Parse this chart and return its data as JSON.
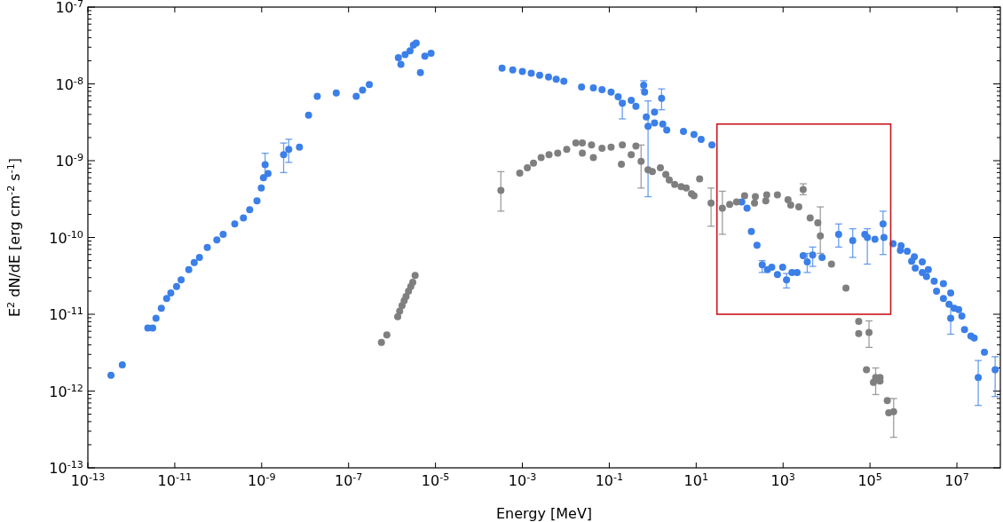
{
  "chart_data": {
    "type": "scatter",
    "xlabel": "Energy [MeV]",
    "ylabel": "E$^{2}$ dN/dE [erg cm$^{-2}$ s$^{-1}$]",
    "log": "xy",
    "grid": false,
    "marker": "circle",
    "xlim": [
      1e-13,
      100000000.0
    ],
    "ylim": [
      1e-13,
      1e-07
    ],
    "xticks": [
      {
        "value": 1e-13,
        "label": "10$^{-13}$"
      },
      {
        "value": 1e-11,
        "label": "10$^{-11}$"
      },
      {
        "value": 1e-09,
        "label": "10$^{-9}$"
      },
      {
        "value": 1e-07,
        "label": "10$^{-7}$"
      },
      {
        "value": 1e-05,
        "label": "10$^{-5}$"
      },
      {
        "value": 0.001,
        "label": "10$^{-3}$"
      },
      {
        "value": 0.1,
        "label": "10$^{-1}$"
      },
      {
        "value": 10,
        "label": "10$^{1}$"
      },
      {
        "value": 1000,
        "label": "10$^{3}$"
      },
      {
        "value": 100000,
        "label": "10$^{5}$"
      },
      {
        "value": 10000000,
        "label": "10$^{7}$"
      }
    ],
    "yticks": [
      {
        "value": 1e-13,
        "label": "10$^{-13}$"
      },
      {
        "value": 1e-12,
        "label": "10$^{-12}$"
      },
      {
        "value": 1e-11,
        "label": "10$^{-11}$"
      },
      {
        "value": 1e-10,
        "label": "10$^{-10}$"
      },
      {
        "value": 1e-09,
        "label": "10$^{-9}$"
      },
      {
        "value": 1e-08,
        "label": "10$^{-8}$"
      },
      {
        "value": 1e-07,
        "label": "10$^{-7}$"
      }
    ],
    "series": [
      {
        "color": "#3b7fe8",
        "x": [
          3.4e-13,
          6.2e-13,
          2.4e-12,
          3.1e-12,
          3.7e-12,
          4.9e-12,
          6.5e-12,
          8.1e-12,
          1.1e-11,
          1.4e-11,
          2.1e-11,
          2.8e-11,
          3.7e-11,
          5.6e-11,
          9.3e-11,
          1.3e-10,
          2.4e-10,
          3.8e-10,
          5.3e-10,
          7.8e-10,
          9.8e-10,
          1.1e-09,
          1.2e-09,
          1.4e-09,
          3.2e-09,
          4.2e-09,
          7.4e-09,
          1.2e-08,
          1.9e-08,
          5.2e-08,
          1.5e-07,
          2.1e-07,
          3e-07,
          1.4e-06,
          1.6e-06,
          2e-06,
          2.6e-06,
          3.1e-06,
          3.6e-06,
          4.5e-06,
          5.7e-06,
          7.9e-06,
          0.00034,
          0.0006,
          0.001,
          0.0016,
          0.0025,
          0.004,
          0.006,
          0.009,
          0.023,
          0.043,
          0.068,
          0.11,
          0.16,
          0.2,
          0.32,
          0.41,
          0.62,
          0.65,
          0.71,
          0.78,
          1.1,
          1.1,
          1.6,
          1.7,
          2.1,
          5.1,
          8.9,
          13,
          23,
          112,
          148,
          186,
          251,
          331,
          437,
          550,
          741,
          977,
          1200,
          1600,
          2100,
          2900,
          3600,
          4800,
          7900,
          19000,
          40000,
          76000,
          87000,
          130000,
          200000,
          210000,
          340000,
          500000,
          520000,
          720000,
          910000,
          1050000,
          1100000,
          1600000,
          1600000,
          2000000,
          2200000,
          3000000,
          3400000,
          4900000,
          4900000,
          6600000,
          7200000,
          7200000,
          8700000,
          11000000,
          13000000,
          15000000,
          21000000,
          25000000,
          31000000,
          43000000,
          76000000
        ],
        "values": [
          1.6e-12,
          2.2e-12,
          6.6e-12,
          6.6e-12,
          8.9e-12,
          1.2e-11,
          1.6e-11,
          1.9e-11,
          2.3e-11,
          2.8e-11,
          3.8e-11,
          4.7e-11,
          5.5e-11,
          7.4e-11,
          9.3e-11,
          1.1e-10,
          1.5e-10,
          1.8e-10,
          2.3e-10,
          3e-10,
          4.4e-10,
          6e-10,
          8.9e-10,
          6.8e-10,
          1.2e-09,
          1.4e-09,
          1.5e-09,
          3.9e-09,
          6.9e-09,
          7.6e-09,
          6.9e-09,
          8.3e-09,
          9.8e-09,
          2.2e-08,
          1.8e-08,
          2.4e-08,
          2.7e-08,
          3.2e-08,
          3.4e-08,
          1.4e-08,
          2.3e-08,
          2.5e-08,
          1.6e-08,
          1.52e-08,
          1.45e-08,
          1.38e-08,
          1.3e-08,
          1.23e-08,
          1.15e-08,
          1.08e-08,
          9.1e-09,
          8.9e-09,
          8.4e-09,
          7.8e-09,
          6.8e-09,
          5.6e-09,
          6.1e-09,
          5.1e-09,
          9.6e-09,
          7.8e-09,
          3.7e-09,
          2.8e-09,
          3.1e-09,
          4.3e-09,
          6.5e-09,
          3e-09,
          2.5e-09,
          2.4e-09,
          2.2e-09,
          1.9e-09,
          1.6e-09,
          2.9e-10,
          2.4e-10,
          1.2e-10,
          7.9e-11,
          4.4e-11,
          3.8e-11,
          4.1e-11,
          3.3e-11,
          4.1e-11,
          2.8e-11,
          3.5e-11,
          3.5e-11,
          5.8e-11,
          4.8e-11,
          5.9e-11,
          5.5e-11,
          1.1e-10,
          9.1e-11,
          1.1e-10,
          1e-10,
          9.5e-11,
          1.5e-10,
          1e-10,
          8.3e-11,
          6.8e-11,
          7.8e-11,
          6.6e-11,
          4.9e-11,
          5.6e-11,
          4e-11,
          4.8e-11,
          3.5e-11,
          3.1e-11,
          3.8e-11,
          2.7e-11,
          2e-11,
          2.5e-11,
          1.6e-11,
          1.35e-11,
          1.9e-11,
          8.9e-12,
          1.2e-11,
          1.15e-11,
          9.5e-12,
          6.3e-12,
          5.2e-12,
          4.9e-12,
          1.5e-12,
          3.2e-12,
          1.9e-12
        ],
        "errors": [
          null,
          null,
          null,
          null,
          null,
          null,
          null,
          null,
          null,
          null,
          null,
          null,
          null,
          null,
          null,
          null,
          null,
          null,
          null,
          null,
          null,
          null,
          [
            6.5e-10,
            1.25e-09
          ],
          null,
          [
            7e-10,
            1.7e-09
          ],
          [
            9.5e-10,
            1.9e-09
          ],
          null,
          null,
          null,
          null,
          null,
          null,
          null,
          null,
          null,
          null,
          null,
          null,
          null,
          null,
          null,
          null,
          null,
          null,
          null,
          null,
          null,
          null,
          null,
          null,
          null,
          null,
          null,
          null,
          null,
          [
            3.5e-09,
            6e-09
          ],
          null,
          null,
          [
            8.4e-09,
            1.1e-08
          ],
          null,
          null,
          [
            3.4e-10,
            6e-09
          ],
          null,
          null,
          [
            4.6e-09,
            8.6e-09
          ],
          null,
          null,
          null,
          null,
          null,
          null,
          null,
          null,
          null,
          null,
          [
            3.5e-11,
            5e-11
          ],
          null,
          null,
          null,
          null,
          [
            2.2e-11,
            3.4e-11
          ],
          null,
          null,
          null,
          [
            3.5e-11,
            6.2e-11
          ],
          [
            4.2e-11,
            7.5e-11
          ],
          null,
          [
            7.5e-11,
            1.5e-10
          ],
          [
            5.5e-11,
            1.3e-10
          ],
          null,
          [
            4.5e-11,
            1.3e-10
          ],
          null,
          [
            6e-11,
            2.2e-10
          ],
          null,
          null,
          null,
          null,
          null,
          null,
          null,
          null,
          null,
          null,
          null,
          null,
          null,
          null,
          null,
          null,
          null,
          null,
          [
            5.5e-12,
            1.3e-11
          ],
          null,
          null,
          null,
          null,
          null,
          null,
          [
            6.5e-13,
            2.5e-12
          ],
          null,
          [
            8.5e-13,
            2.8e-12
          ]
        ]
      },
      {
        "color": "#7f7f7f",
        "x": [
          5.7e-07,
          7.6e-07,
          1.35e-06,
          1.5e-06,
          1.7e-06,
          1.9e-06,
          2.1e-06,
          2.4e-06,
          2.7e-06,
          3e-06,
          3.4e-06,
          0.00032,
          0.00087,
          0.0013,
          0.0018,
          0.0027,
          0.0041,
          0.0065,
          0.0105,
          0.017,
          0.024,
          0.024,
          0.039,
          0.043,
          0.068,
          0.11,
          0.19,
          0.2,
          0.32,
          0.41,
          0.54,
          0.78,
          0.98,
          1.5,
          2.0,
          2.4,
          3.2,
          4.5,
          5.9,
          7.8,
          8.9,
          12,
          22,
          40,
          59,
          85,
          130,
          220,
          230,
          400,
          420,
          740,
          1300,
          1500,
          2300,
          2900,
          4200,
          6300,
          7200,
          13000,
          28000,
          55000,
          55000,
          95000,
          83000,
          120000,
          135000,
          170000,
          170000,
          250000,
          270000,
          350000
        ],
        "values": [
          4.3e-12,
          5.4e-12,
          9.3e-12,
          1.1e-11,
          1.3e-11,
          1.5e-11,
          1.7e-11,
          2e-11,
          2.3e-11,
          2.6e-11,
          3.2e-11,
          4.1e-10,
          6.9e-10,
          8.1e-10,
          9.3e-10,
          1.1e-09,
          1.2e-09,
          1.25e-09,
          1.4e-09,
          1.7e-09,
          1.7e-09,
          1.25e-09,
          1.6e-09,
          1.1e-09,
          1.45e-09,
          1.5e-09,
          9e-10,
          1.6e-09,
          1.2e-09,
          1.55e-09,
          9.8e-10,
          7.6e-10,
          7.2e-10,
          8.1e-10,
          6.6e-10,
          5.6e-10,
          4.9e-10,
          4.6e-10,
          4.4e-10,
          3.7e-10,
          3.5e-10,
          5.8e-10,
          2.8e-10,
          2.4e-10,
          2.7e-10,
          2.9e-10,
          3.5e-10,
          2.8e-10,
          3.4e-10,
          3e-10,
          3.6e-10,
          3.6e-10,
          3.1e-10,
          2.65e-10,
          2.5e-10,
          4.2e-10,
          1.8e-10,
          1.55e-10,
          1.05e-10,
          4.5e-11,
          2.2e-11,
          8.1e-12,
          5.6e-12,
          5.8e-12,
          1.9e-12,
          1.3e-12,
          1.5e-12,
          1.5e-12,
          1.35e-12,
          7.5e-13,
          5.2e-13,
          5.4e-13
        ],
        "errors": [
          null,
          null,
          null,
          null,
          null,
          null,
          null,
          null,
          null,
          null,
          null,
          [
            2.2e-10,
            7.2e-10
          ],
          null,
          null,
          null,
          null,
          null,
          null,
          null,
          null,
          null,
          null,
          null,
          null,
          null,
          null,
          null,
          null,
          null,
          null,
          [
            4.4e-10,
            1.6e-09
          ],
          null,
          null,
          null,
          null,
          null,
          null,
          null,
          null,
          null,
          null,
          null,
          [
            1.4e-10,
            4.4e-10
          ],
          [
            1.1e-10,
            4e-10
          ],
          null,
          null,
          null,
          null,
          null,
          null,
          null,
          null,
          null,
          null,
          null,
          [
            3.6e-10,
            5e-10
          ],
          null,
          null,
          [
            6.2e-11,
            2.5e-10
          ],
          null,
          null,
          null,
          null,
          [
            3.7e-12,
            8.2e-12
          ],
          null,
          null,
          [
            9e-13,
            2e-12
          ],
          null,
          null,
          null,
          null,
          [
            2.5e-13,
            8e-13
          ]
        ]
      }
    ]
  }
}
